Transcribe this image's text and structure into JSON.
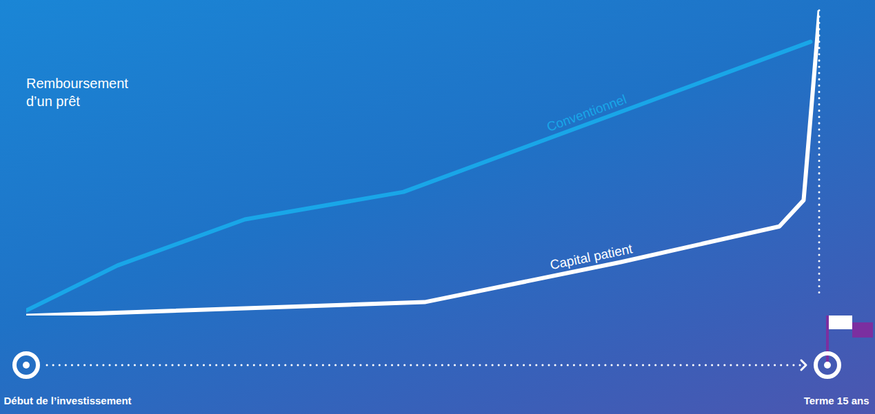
{
  "chart_data": {
    "type": "line",
    "title": "Remboursement d’un prêt",
    "xlim": [
      0,
      15
    ],
    "xticks": [
      {
        "value": 0,
        "label": "Début de l’investissement"
      },
      {
        "value": 15,
        "label": "Terme 15 ans"
      }
    ],
    "ylim": [
      0,
      100
    ],
    "tick_labels": "x",
    "grid": false,
    "series": [
      {
        "name": "Conventionnel",
        "color": "#19a6e8",
        "x": [
          0,
          1.72,
          4.13,
          7.13,
          14.83
        ],
        "values": [
          1.8,
          16.5,
          31.6,
          40.6,
          89.8
        ]
      },
      {
        "name": "Capital patient",
        "color": "#ffffff",
        "x": [
          0,
          7.53,
          11.24,
          14.24,
          14.7,
          15
        ],
        "values": [
          0,
          4.5,
          17.6,
          29.3,
          37.9,
          100
        ]
      }
    ]
  }
}
